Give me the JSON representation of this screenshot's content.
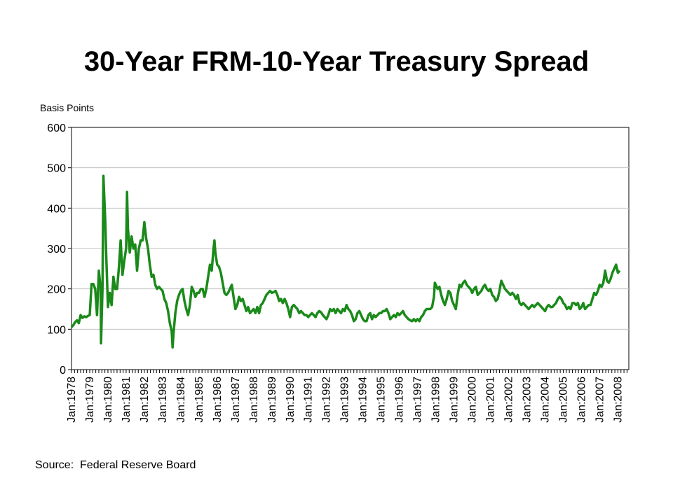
{
  "source": "Source:  Federal Reserve Board",
  "colors": {
    "series": "#1a8a1a",
    "grid": "#c0c0c0",
    "axis": "#000000"
  },
  "chart_data": {
    "type": "line",
    "title": "30-Year FRM-10-Year Treasury Spread",
    "ylabel": "Basis Points",
    "xlabel": "",
    "ylim": [
      0,
      600
    ],
    "yticks": [
      0,
      100,
      200,
      300,
      400,
      500,
      600
    ],
    "xlim": [
      1978.0,
      2008.6
    ],
    "grid": true,
    "xtick_labels": [
      "Jan:1978",
      "Jan:1979",
      "Jan:1980",
      "Jan:1981",
      "Jan:1982",
      "Jan:1983",
      "Jan:1984",
      "Jan:1985",
      "Jan:1986",
      "Jan:1987",
      "Jan:1988",
      "Jan:1989",
      "Jan:1990",
      "Jan:1991",
      "Jan:1992",
      "Jan:1993",
      "Jan:1994",
      "Jan:1995",
      "Jan:1996",
      "Jan:1997",
      "Jan:1998",
      "Jan:1999",
      "Jan:2000",
      "Jan:2001",
      "Jan:2002",
      "Jan:2003",
      "Jan:2004",
      "Jan:2005",
      "Jan:2006",
      "Jan:2007",
      "Jan:2008"
    ],
    "series": [
      {
        "values": [
          [
            1978.0,
            105
          ],
          [
            1978.1,
            110
          ],
          [
            1978.2,
            118
          ],
          [
            1978.3,
            122
          ],
          [
            1978.4,
            115
          ],
          [
            1978.5,
            135
          ],
          [
            1978.6,
            128
          ],
          [
            1978.7,
            132
          ],
          [
            1978.8,
            130
          ],
          [
            1978.9,
            133
          ],
          [
            1979.0,
            135
          ],
          [
            1979.1,
            212
          ],
          [
            1979.2,
            212
          ],
          [
            1979.3,
            200
          ],
          [
            1979.4,
            135
          ],
          [
            1979.5,
            245
          ],
          [
            1979.6,
            200
          ],
          [
            1979.62,
            65
          ],
          [
            1979.7,
            200
          ],
          [
            1979.75,
            480
          ],
          [
            1979.85,
            370
          ],
          [
            1979.9,
            290
          ],
          [
            1980.0,
            155
          ],
          [
            1980.1,
            190
          ],
          [
            1980.2,
            160
          ],
          [
            1980.3,
            230
          ],
          [
            1980.4,
            200
          ],
          [
            1980.5,
            200
          ],
          [
            1980.6,
            250
          ],
          [
            1980.7,
            320
          ],
          [
            1980.8,
            235
          ],
          [
            1980.9,
            270
          ],
          [
            1981.0,
            300
          ],
          [
            1981.05,
            440
          ],
          [
            1981.1,
            350
          ],
          [
            1981.2,
            290
          ],
          [
            1981.3,
            330
          ],
          [
            1981.4,
            300
          ],
          [
            1981.5,
            310
          ],
          [
            1981.6,
            245
          ],
          [
            1981.7,
            300
          ],
          [
            1981.8,
            320
          ],
          [
            1981.9,
            320
          ],
          [
            1982.0,
            365
          ],
          [
            1982.1,
            325
          ],
          [
            1982.2,
            300
          ],
          [
            1982.3,
            260
          ],
          [
            1982.4,
            230
          ],
          [
            1982.5,
            235
          ],
          [
            1982.6,
            210
          ],
          [
            1982.7,
            200
          ],
          [
            1982.8,
            205
          ],
          [
            1982.9,
            200
          ],
          [
            1983.0,
            195
          ],
          [
            1983.1,
            175
          ],
          [
            1983.2,
            165
          ],
          [
            1983.3,
            145
          ],
          [
            1983.4,
            115
          ],
          [
            1983.5,
            95
          ],
          [
            1983.55,
            55
          ],
          [
            1983.6,
            90
          ],
          [
            1983.7,
            140
          ],
          [
            1983.8,
            170
          ],
          [
            1983.9,
            185
          ],
          [
            1984.0,
            195
          ],
          [
            1984.1,
            200
          ],
          [
            1984.2,
            170
          ],
          [
            1984.3,
            150
          ],
          [
            1984.4,
            135
          ],
          [
            1984.5,
            160
          ],
          [
            1984.6,
            205
          ],
          [
            1984.7,
            195
          ],
          [
            1984.8,
            180
          ],
          [
            1984.9,
            190
          ],
          [
            1985.0,
            190
          ],
          [
            1985.1,
            200
          ],
          [
            1985.2,
            200
          ],
          [
            1985.3,
            180
          ],
          [
            1985.4,
            200
          ],
          [
            1985.5,
            230
          ],
          [
            1985.6,
            260
          ],
          [
            1985.7,
            245
          ],
          [
            1985.8,
            300
          ],
          [
            1985.85,
            320
          ],
          [
            1985.9,
            290
          ],
          [
            1986.0,
            260
          ],
          [
            1986.1,
            255
          ],
          [
            1986.2,
            240
          ],
          [
            1986.3,
            215
          ],
          [
            1986.4,
            190
          ],
          [
            1986.5,
            185
          ],
          [
            1986.6,
            190
          ],
          [
            1986.7,
            200
          ],
          [
            1986.8,
            210
          ],
          [
            1986.9,
            180
          ],
          [
            1987.0,
            150
          ],
          [
            1987.1,
            160
          ],
          [
            1987.2,
            180
          ],
          [
            1987.3,
            170
          ],
          [
            1987.4,
            175
          ],
          [
            1987.5,
            160
          ],
          [
            1987.6,
            145
          ],
          [
            1987.7,
            155
          ],
          [
            1987.8,
            140
          ],
          [
            1987.9,
            145
          ],
          [
            1988.0,
            150
          ],
          [
            1988.1,
            140
          ],
          [
            1988.2,
            155
          ],
          [
            1988.3,
            140
          ],
          [
            1988.4,
            160
          ],
          [
            1988.5,
            165
          ],
          [
            1988.6,
            175
          ],
          [
            1988.7,
            185
          ],
          [
            1988.8,
            190
          ],
          [
            1988.9,
            195
          ],
          [
            1989.0,
            190
          ],
          [
            1989.1,
            192
          ],
          [
            1989.2,
            195
          ],
          [
            1989.3,
            185
          ],
          [
            1989.4,
            170
          ],
          [
            1989.5,
            175
          ],
          [
            1989.6,
            165
          ],
          [
            1989.7,
            175
          ],
          [
            1989.8,
            165
          ],
          [
            1989.9,
            150
          ],
          [
            1990.0,
            130
          ],
          [
            1990.1,
            155
          ],
          [
            1990.2,
            160
          ],
          [
            1990.3,
            155
          ],
          [
            1990.4,
            150
          ],
          [
            1990.5,
            140
          ],
          [
            1990.6,
            145
          ],
          [
            1990.7,
            140
          ],
          [
            1990.8,
            135
          ],
          [
            1990.9,
            135
          ],
          [
            1991.0,
            130
          ],
          [
            1991.1,
            135
          ],
          [
            1991.2,
            140
          ],
          [
            1991.3,
            135
          ],
          [
            1991.4,
            130
          ],
          [
            1991.5,
            140
          ],
          [
            1991.6,
            145
          ],
          [
            1991.7,
            142
          ],
          [
            1991.8,
            135
          ],
          [
            1991.9,
            130
          ],
          [
            1992.0,
            125
          ],
          [
            1992.1,
            135
          ],
          [
            1992.2,
            150
          ],
          [
            1992.3,
            145
          ],
          [
            1992.4,
            150
          ],
          [
            1992.5,
            140
          ],
          [
            1992.6,
            150
          ],
          [
            1992.7,
            145
          ],
          [
            1992.8,
            140
          ],
          [
            1992.9,
            150
          ],
          [
            1993.0,
            145
          ],
          [
            1993.1,
            160
          ],
          [
            1993.2,
            150
          ],
          [
            1993.3,
            145
          ],
          [
            1993.4,
            135
          ],
          [
            1993.5,
            120
          ],
          [
            1993.6,
            125
          ],
          [
            1993.7,
            140
          ],
          [
            1993.8,
            145
          ],
          [
            1993.9,
            135
          ],
          [
            1994.0,
            125
          ],
          [
            1994.1,
            120
          ],
          [
            1994.2,
            120
          ],
          [
            1994.3,
            135
          ],
          [
            1994.4,
            140
          ],
          [
            1994.5,
            125
          ],
          [
            1994.6,
            135
          ],
          [
            1994.7,
            130
          ],
          [
            1994.8,
            135
          ],
          [
            1994.9,
            140
          ],
          [
            1995.0,
            140
          ],
          [
            1995.1,
            145
          ],
          [
            1995.2,
            145
          ],
          [
            1995.3,
            150
          ],
          [
            1995.4,
            140
          ],
          [
            1995.5,
            125
          ],
          [
            1995.6,
            130
          ],
          [
            1995.7,
            135
          ],
          [
            1995.8,
            130
          ],
          [
            1995.9,
            140
          ],
          [
            1996.0,
            135
          ],
          [
            1996.1,
            140
          ],
          [
            1996.2,
            145
          ],
          [
            1996.3,
            135
          ],
          [
            1996.4,
            130
          ],
          [
            1996.5,
            125
          ],
          [
            1996.6,
            122
          ],
          [
            1996.7,
            120
          ],
          [
            1996.8,
            125
          ],
          [
            1996.9,
            120
          ],
          [
            1997.0,
            125
          ],
          [
            1997.1,
            120
          ],
          [
            1997.2,
            130
          ],
          [
            1997.3,
            135
          ],
          [
            1997.4,
            145
          ],
          [
            1997.5,
            150
          ],
          [
            1997.6,
            150
          ],
          [
            1997.7,
            150
          ],
          [
            1997.8,
            155
          ],
          [
            1997.9,
            180
          ],
          [
            1997.95,
            215
          ],
          [
            1998.0,
            210
          ],
          [
            1998.1,
            200
          ],
          [
            1998.2,
            205
          ],
          [
            1998.3,
            185
          ],
          [
            1998.4,
            170
          ],
          [
            1998.5,
            160
          ],
          [
            1998.6,
            175
          ],
          [
            1998.7,
            195
          ],
          [
            1998.8,
            190
          ],
          [
            1998.9,
            170
          ],
          [
            1999.0,
            160
          ],
          [
            1999.1,
            150
          ],
          [
            1999.2,
            185
          ],
          [
            1999.3,
            210
          ],
          [
            1999.4,
            205
          ],
          [
            1999.5,
            215
          ],
          [
            1999.6,
            220
          ],
          [
            1999.7,
            210
          ],
          [
            1999.8,
            205
          ],
          [
            1999.9,
            200
          ],
          [
            2000.0,
            190
          ],
          [
            2000.1,
            200
          ],
          [
            2000.2,
            205
          ],
          [
            2000.3,
            185
          ],
          [
            2000.4,
            190
          ],
          [
            2000.5,
            195
          ],
          [
            2000.6,
            205
          ],
          [
            2000.7,
            210
          ],
          [
            2000.8,
            200
          ],
          [
            2000.9,
            195
          ],
          [
            2001.0,
            200
          ],
          [
            2001.1,
            185
          ],
          [
            2001.2,
            180
          ],
          [
            2001.3,
            170
          ],
          [
            2001.4,
            175
          ],
          [
            2001.5,
            195
          ],
          [
            2001.6,
            220
          ],
          [
            2001.7,
            210
          ],
          [
            2001.8,
            200
          ],
          [
            2001.9,
            195
          ],
          [
            2002.0,
            190
          ],
          [
            2002.1,
            185
          ],
          [
            2002.2,
            190
          ],
          [
            2002.3,
            185
          ],
          [
            2002.4,
            175
          ],
          [
            2002.5,
            185
          ],
          [
            2002.6,
            165
          ],
          [
            2002.7,
            160
          ],
          [
            2002.8,
            165
          ],
          [
            2002.9,
            160
          ],
          [
            2003.0,
            155
          ],
          [
            2003.1,
            150
          ],
          [
            2003.2,
            155
          ],
          [
            2003.3,
            160
          ],
          [
            2003.4,
            155
          ],
          [
            2003.5,
            160
          ],
          [
            2003.6,
            165
          ],
          [
            2003.7,
            160
          ],
          [
            2003.8,
            155
          ],
          [
            2003.9,
            150
          ],
          [
            2004.0,
            145
          ],
          [
            2004.1,
            155
          ],
          [
            2004.2,
            160
          ],
          [
            2004.3,
            155
          ],
          [
            2004.4,
            155
          ],
          [
            2004.5,
            160
          ],
          [
            2004.6,
            165
          ],
          [
            2004.7,
            175
          ],
          [
            2004.8,
            180
          ],
          [
            2004.9,
            175
          ],
          [
            2005.0,
            165
          ],
          [
            2005.1,
            160
          ],
          [
            2005.2,
            150
          ],
          [
            2005.3,
            155
          ],
          [
            2005.4,
            150
          ],
          [
            2005.5,
            165
          ],
          [
            2005.6,
            165
          ],
          [
            2005.7,
            160
          ],
          [
            2005.8,
            165
          ],
          [
            2005.9,
            150
          ],
          [
            2006.0,
            155
          ],
          [
            2006.1,
            165
          ],
          [
            2006.2,
            150
          ],
          [
            2006.3,
            155
          ],
          [
            2006.4,
            160
          ],
          [
            2006.5,
            160
          ],
          [
            2006.6,
            175
          ],
          [
            2006.7,
            190
          ],
          [
            2006.8,
            185
          ],
          [
            2006.9,
            195
          ],
          [
            2007.0,
            210
          ],
          [
            2007.1,
            205
          ],
          [
            2007.2,
            215
          ],
          [
            2007.3,
            245
          ],
          [
            2007.4,
            220
          ],
          [
            2007.5,
            215
          ],
          [
            2007.6,
            225
          ],
          [
            2007.7,
            240
          ],
          [
            2007.8,
            250
          ],
          [
            2007.9,
            260
          ],
          [
            2008.0,
            240
          ],
          [
            2008.1,
            245
          ]
        ]
      }
    ]
  }
}
